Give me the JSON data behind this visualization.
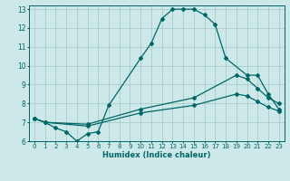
{
  "xlabel": "Humidex (Indice chaleur)",
  "ylabel": "",
  "bg_color": "#cce8e8",
  "grid_color": "#aacccc",
  "line_color": "#006666",
  "xlim": [
    -0.5,
    23.5
  ],
  "ylim": [
    6,
    13.2
  ],
  "xticks": [
    0,
    1,
    2,
    3,
    4,
    5,
    6,
    7,
    8,
    9,
    10,
    11,
    12,
    13,
    14,
    15,
    16,
    17,
    18,
    19,
    20,
    21,
    22,
    23
  ],
  "yticks": [
    6,
    7,
    8,
    9,
    10,
    11,
    12,
    13
  ],
  "lines": [
    {
      "x": [
        0,
        1,
        2,
        3,
        4,
        5,
        6,
        7,
        10,
        11,
        12,
        13,
        14,
        15,
        16,
        17,
        18,
        20,
        21,
        22,
        23
      ],
      "y": [
        7.2,
        7.0,
        6.7,
        6.5,
        6.0,
        6.4,
        6.5,
        7.9,
        10.4,
        11.2,
        12.5,
        13.0,
        13.0,
        13.0,
        12.7,
        12.2,
        10.4,
        9.5,
        9.5,
        8.5,
        7.7
      ]
    },
    {
      "x": [
        0,
        1,
        5,
        10,
        15,
        19,
        20,
        21,
        22,
        23
      ],
      "y": [
        7.2,
        7.0,
        6.9,
        7.7,
        8.3,
        9.5,
        9.3,
        8.8,
        8.3,
        8.0
      ]
    },
    {
      "x": [
        0,
        1,
        5,
        10,
        15,
        19,
        20,
        21,
        22,
        23
      ],
      "y": [
        7.2,
        7.0,
        6.8,
        7.5,
        7.9,
        8.5,
        8.4,
        8.1,
        7.8,
        7.6
      ]
    }
  ]
}
